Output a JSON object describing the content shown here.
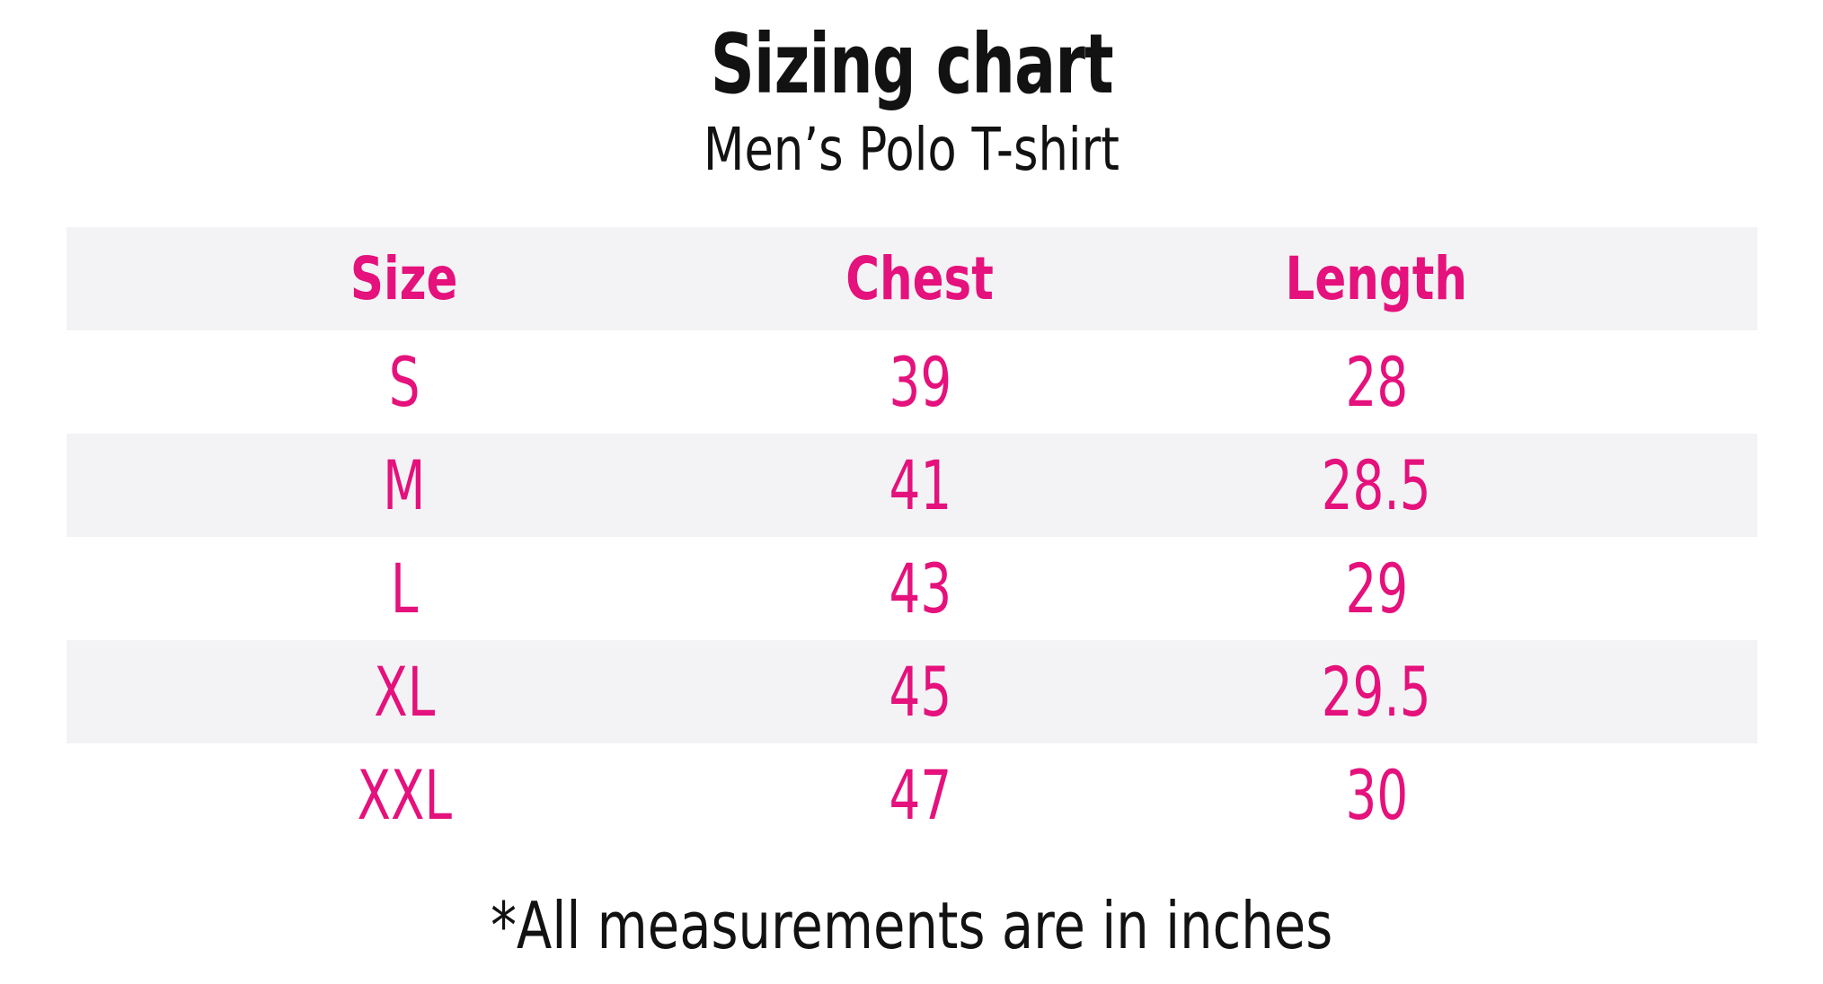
{
  "colors": {
    "accent_pink": "#E5117C",
    "stripe_gray": "#F3F3F5",
    "text_black": "#121212",
    "background": "#FFFFFF"
  },
  "header": {
    "title": "Sizing chart",
    "subtitle": "Men’s Polo T-shirt"
  },
  "footnote": "*All measurements are in inches",
  "chart_data": {
    "type": "table",
    "title": "Sizing chart",
    "subtitle": "Men’s Polo T-shirt",
    "columns": [
      "Size",
      "Chest",
      "Length"
    ],
    "rows": [
      {
        "size": "S",
        "chest": "39",
        "length": "28"
      },
      {
        "size": "M",
        "chest": "41",
        "length": "28.5"
      },
      {
        "size": "L",
        "chest": "43",
        "length": "29"
      },
      {
        "size": "XL",
        "chest": "45",
        "length": "29.5"
      },
      {
        "size": "XXL",
        "chest": "47",
        "length": "30"
      }
    ],
    "units": "inches",
    "footnote": "*All measurements are in inches",
    "layout": {
      "striped_rows": true,
      "header_row_striped": true,
      "header_text_color": "#E5117C",
      "value_text_color": "#E5117C",
      "grid": "off",
      "borders": "none"
    }
  }
}
